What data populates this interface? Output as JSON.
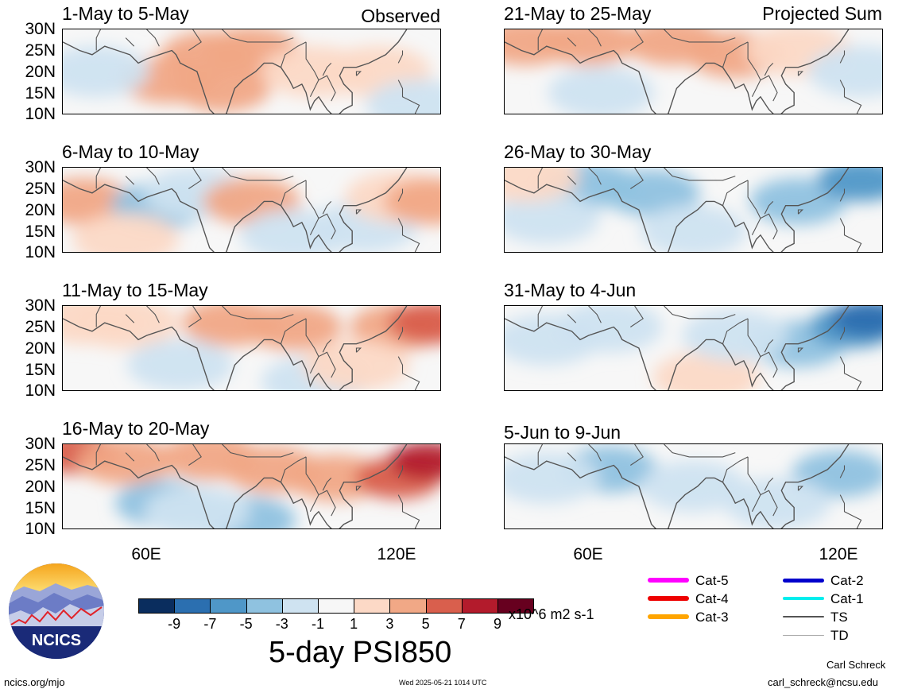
{
  "header": {
    "left_note": "Observed",
    "right_note": "Projected Sum"
  },
  "lat_labels": [
    "30N",
    "25N",
    "20N",
    "15N",
    "10N"
  ],
  "lon_labels": [
    "60E",
    "120E"
  ],
  "colors": {
    "scale": [
      "#0a2d5e",
      "#2b6fb0",
      "#4f97c8",
      "#8fc2e0",
      "#cfe3f1",
      "#f7f7f7",
      "#fcd9c6",
      "#f1a886",
      "#d95f4d",
      "#b31b2c",
      "#67001f"
    ],
    "coast": "#555555"
  },
  "chart_data": [
    {
      "type": "heatmap",
      "title": "1-May to 5-May",
      "group": "Observed",
      "x": [
        40,
        130
      ],
      "y": [
        10,
        30
      ],
      "blobs": [
        {
          "lon": 75,
          "lat": 24,
          "val": 3
        },
        {
          "lon": 85,
          "lat": 25,
          "val": 3
        },
        {
          "lon": 65,
          "lat": 18,
          "val": 3
        },
        {
          "lon": 78,
          "lat": 16,
          "val": 3
        },
        {
          "lon": 100,
          "lat": 20,
          "val": 1
        },
        {
          "lon": 115,
          "lat": 20,
          "val": 1
        },
        {
          "lon": 48,
          "lat": 20,
          "val": -1
        },
        {
          "lon": 125,
          "lat": 12,
          "val": -1
        }
      ]
    },
    {
      "type": "heatmap",
      "title": "6-May to 10-May",
      "group": "Observed",
      "x": [
        40,
        130
      ],
      "y": [
        10,
        30
      ],
      "blobs": [
        {
          "lon": 45,
          "lat": 22,
          "val": 3
        },
        {
          "lon": 63,
          "lat": 21,
          "val": -3
        },
        {
          "lon": 72,
          "lat": 24,
          "val": -1
        },
        {
          "lon": 85,
          "lat": 22,
          "val": 3
        },
        {
          "lon": 95,
          "lat": 14,
          "val": -1
        },
        {
          "lon": 112,
          "lat": 16,
          "val": -1
        },
        {
          "lon": 120,
          "lat": 23,
          "val": 1
        },
        {
          "lon": 55,
          "lat": 13,
          "val": 1
        },
        {
          "lon": 128,
          "lat": 22,
          "val": 3
        }
      ]
    },
    {
      "type": "heatmap",
      "title": "11-May to 15-May",
      "group": "Observed",
      "x": [
        40,
        130
      ],
      "y": [
        10,
        30
      ],
      "blobs": [
        {
          "lon": 45,
          "lat": 27,
          "val": 1
        },
        {
          "lon": 55,
          "lat": 26,
          "val": 1
        },
        {
          "lon": 80,
          "lat": 26,
          "val": 3
        },
        {
          "lon": 95,
          "lat": 25,
          "val": 3
        },
        {
          "lon": 120,
          "lat": 25,
          "val": 3
        },
        {
          "lon": 128,
          "lat": 26,
          "val": 5
        },
        {
          "lon": 68,
          "lat": 16,
          "val": -1
        },
        {
          "lon": 100,
          "lat": 12,
          "val": -1
        },
        {
          "lon": 110,
          "lat": 16,
          "val": 1
        }
      ]
    },
    {
      "type": "heatmap",
      "title": "16-May to 20-May",
      "group": "Observed",
      "x": [
        40,
        130
      ],
      "y": [
        10,
        30
      ],
      "blobs": [
        {
          "lon": 43,
          "lat": 28,
          "val": 5
        },
        {
          "lon": 55,
          "lat": 26,
          "val": 3
        },
        {
          "lon": 75,
          "lat": 27,
          "val": 3
        },
        {
          "lon": 90,
          "lat": 24,
          "val": 3
        },
        {
          "lon": 105,
          "lat": 22,
          "val": 3
        },
        {
          "lon": 120,
          "lat": 22,
          "val": 5
        },
        {
          "lon": 127,
          "lat": 26,
          "val": 7
        },
        {
          "lon": 64,
          "lat": 16,
          "val": -3
        },
        {
          "lon": 84,
          "lat": 12,
          "val": -3
        },
        {
          "lon": 72,
          "lat": 14,
          "val": -1
        }
      ]
    },
    {
      "type": "heatmap",
      "title": "21-May to 25-May",
      "group": "Projected Sum",
      "x": [
        40,
        130
      ],
      "y": [
        10,
        30
      ],
      "blobs": [
        {
          "lon": 45,
          "lat": 27,
          "val": 3
        },
        {
          "lon": 60,
          "lat": 27,
          "val": 3
        },
        {
          "lon": 80,
          "lat": 27,
          "val": 3
        },
        {
          "lon": 95,
          "lat": 24,
          "val": 3
        },
        {
          "lon": 110,
          "lat": 25,
          "val": 1
        },
        {
          "lon": 63,
          "lat": 15,
          "val": -1
        },
        {
          "lon": 125,
          "lat": 20,
          "val": -1
        }
      ]
    },
    {
      "type": "heatmap",
      "title": "26-May to 30-May",
      "group": "Projected Sum",
      "x": [
        40,
        130
      ],
      "y": [
        10,
        30
      ],
      "blobs": [
        {
          "lon": 60,
          "lat": 26,
          "val": -3
        },
        {
          "lon": 75,
          "lat": 24,
          "val": -3
        },
        {
          "lon": 110,
          "lat": 22,
          "val": -3
        },
        {
          "lon": 125,
          "lat": 27,
          "val": -5
        },
        {
          "lon": 85,
          "lat": 15,
          "val": -1
        },
        {
          "lon": 50,
          "lat": 18,
          "val": -1
        },
        {
          "lon": 45,
          "lat": 28,
          "val": 1
        }
      ]
    },
    {
      "type": "heatmap",
      "title": "31-May to 4-Jun",
      "group": "Projected Sum",
      "x": [
        40,
        130
      ],
      "y": [
        10,
        30
      ],
      "blobs": [
        {
          "lon": 50,
          "lat": 22,
          "val": -1
        },
        {
          "lon": 65,
          "lat": 25,
          "val": -1
        },
        {
          "lon": 110,
          "lat": 21,
          "val": -3
        },
        {
          "lon": 123,
          "lat": 25,
          "val": -5
        },
        {
          "lon": 127,
          "lat": 27,
          "val": -7
        },
        {
          "lon": 88,
          "lat": 13,
          "val": 1
        },
        {
          "lon": 95,
          "lat": 23,
          "val": -1
        }
      ]
    },
    {
      "type": "heatmap",
      "title": "5-Jun to 9-Jun",
      "group": "Projected Sum",
      "x": [
        40,
        130
      ],
      "y": [
        10,
        30
      ],
      "blobs": [
        {
          "lon": 65,
          "lat": 24,
          "val": -3
        },
        {
          "lon": 50,
          "lat": 22,
          "val": -1
        },
        {
          "lon": 85,
          "lat": 20,
          "val": -1
        },
        {
          "lon": 120,
          "lat": 23,
          "val": -3
        },
        {
          "lon": 105,
          "lat": 16,
          "val": -1
        }
      ]
    }
  ],
  "colorbar": {
    "labels": [
      "-9",
      "-7",
      "-5",
      "-3",
      "-1",
      "1",
      "3",
      "5",
      "7",
      "9"
    ],
    "units": "x10^6 m2 s-1",
    "title": "5-day PSI850"
  },
  "storm_legend": [
    {
      "label": "Cat-5",
      "color": "#ff00ff",
      "width": 6
    },
    {
      "label": "Cat-4",
      "color": "#ee0000",
      "width": 6
    },
    {
      "label": "Cat-3",
      "color": "#ffa500",
      "width": 6
    },
    {
      "label": "Cat-2",
      "color": "#0000cc",
      "width": 5
    },
    {
      "label": "Cat-1",
      "color": "#00eeee",
      "width": 4
    },
    {
      "label": "TS",
      "color": "#555555",
      "width": 2
    },
    {
      "label": "TD",
      "color": "#aaaaaa",
      "width": 1
    }
  ],
  "logo": {
    "text": "NCICS"
  },
  "footer": {
    "site": "ncics.org/mjo",
    "timestamp": "Wed 2025-05-21 1014 UTC",
    "author": "Carl Schreck",
    "email": "carl_schreck@ncsu.edu"
  }
}
